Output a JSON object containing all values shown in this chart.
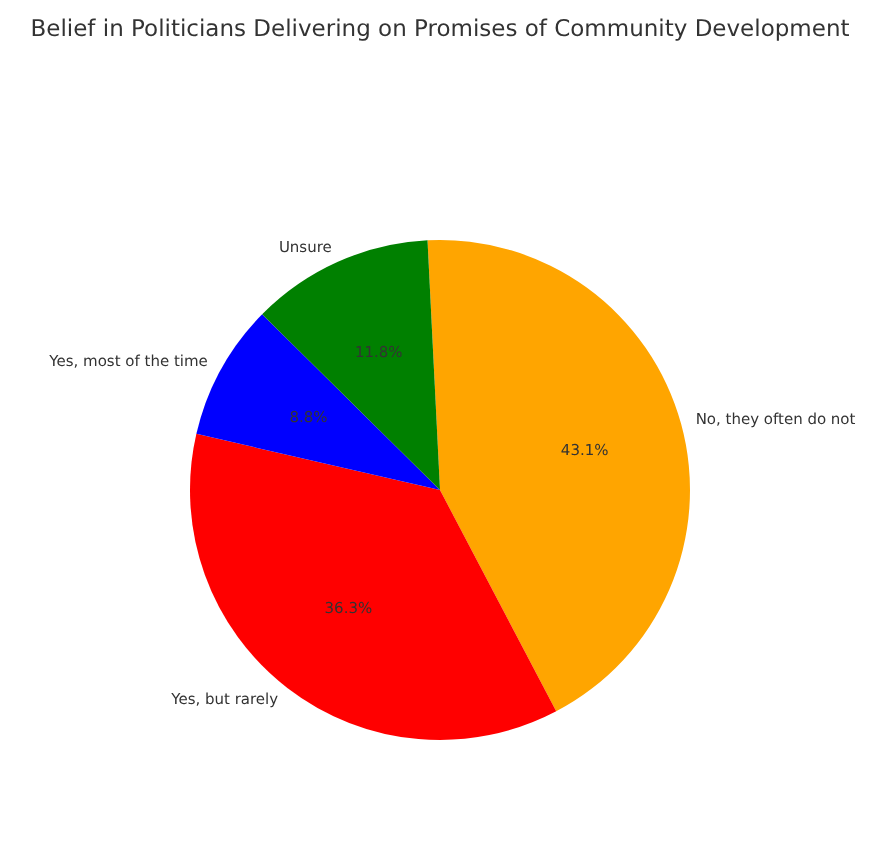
{
  "chart_data": {
    "type": "pie",
    "title": "Belief in Politicians Delivering on Promises of Community Development",
    "categories": [
      "No, they often do not",
      "Yes, but rarely",
      "Yes, most of the time",
      "Unsure"
    ],
    "values": [
      43.1,
      36.3,
      8.8,
      11.8
    ],
    "colors": [
      "#ffa500",
      "#ff0000",
      "#0000ff",
      "#008000"
    ],
    "value_labels": [
      "43.1%",
      "36.3%",
      "8.8%",
      "11.8%"
    ]
  }
}
